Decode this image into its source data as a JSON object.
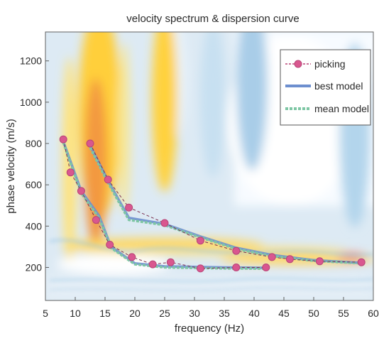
{
  "chart_data": {
    "type": "scatter",
    "title": "velocity spectrum & dispersion curve",
    "xlabel": "frequency (Hz)",
    "ylabel": "phase velocity (m/s)",
    "xlim": [
      5,
      60
    ],
    "ylim": [
      40,
      1340
    ],
    "xticks": [
      5,
      10,
      15,
      20,
      25,
      30,
      35,
      40,
      45,
      50,
      55,
      60
    ],
    "yticks": [
      200,
      400,
      600,
      800,
      1000,
      1200
    ],
    "legend_position": "top-right",
    "colors": {
      "picking": "#d9578f",
      "best_model": "#6d8fcf",
      "mean_model": "#7ec6a4"
    },
    "series": [
      {
        "name": "picking",
        "style": "markers-dashed",
        "curves": [
          [
            [
              8,
              820
            ],
            [
              9.2,
              660
            ],
            [
              11,
              570
            ],
            [
              13.5,
              430
            ],
            [
              15.8,
              310
            ],
            [
              19.5,
              250
            ],
            [
              23,
              215
            ],
            [
              26,
              225
            ],
            [
              31,
              195
            ],
            [
              37,
              200
            ],
            [
              42,
              200
            ]
          ],
          [
            [
              12.5,
              800
            ],
            [
              15.5,
              625
            ],
            [
              19,
              490
            ],
            [
              25,
              415
            ],
            [
              31,
              330
            ],
            [
              37,
              280
            ],
            [
              43,
              250
            ],
            [
              46,
              240
            ],
            [
              51,
              230
            ],
            [
              58,
              225
            ]
          ]
        ]
      },
      {
        "name": "best model",
        "style": "solid",
        "curves": [
          [
            [
              8,
              810
            ],
            [
              11,
              570
            ],
            [
              14,
              450
            ],
            [
              16,
              300
            ],
            [
              20,
              220
            ],
            [
              25,
              205
            ],
            [
              35,
              200
            ],
            [
              42,
              198
            ]
          ],
          [
            [
              12.5,
              790
            ],
            [
              15.5,
              620
            ],
            [
              19,
              440
            ],
            [
              25,
              410
            ],
            [
              31,
              350
            ],
            [
              37,
              295
            ],
            [
              43,
              260
            ],
            [
              50,
              235
            ],
            [
              58,
              222
            ]
          ]
        ]
      },
      {
        "name": "mean model",
        "style": "dashed",
        "curves": [
          [
            [
              8,
              805
            ],
            [
              11,
              560
            ],
            [
              14,
              440
            ],
            [
              16,
              295
            ],
            [
              20,
              215
            ],
            [
              25,
              200
            ],
            [
              35,
              195
            ],
            [
              42,
              194
            ]
          ],
          [
            [
              12.5,
              780
            ],
            [
              15.5,
              610
            ],
            [
              19,
              430
            ],
            [
              25,
              405
            ],
            [
              31,
              345
            ],
            [
              37,
              290
            ],
            [
              43,
              255
            ],
            [
              50,
              232
            ],
            [
              58,
              220
            ]
          ]
        ]
      }
    ]
  }
}
